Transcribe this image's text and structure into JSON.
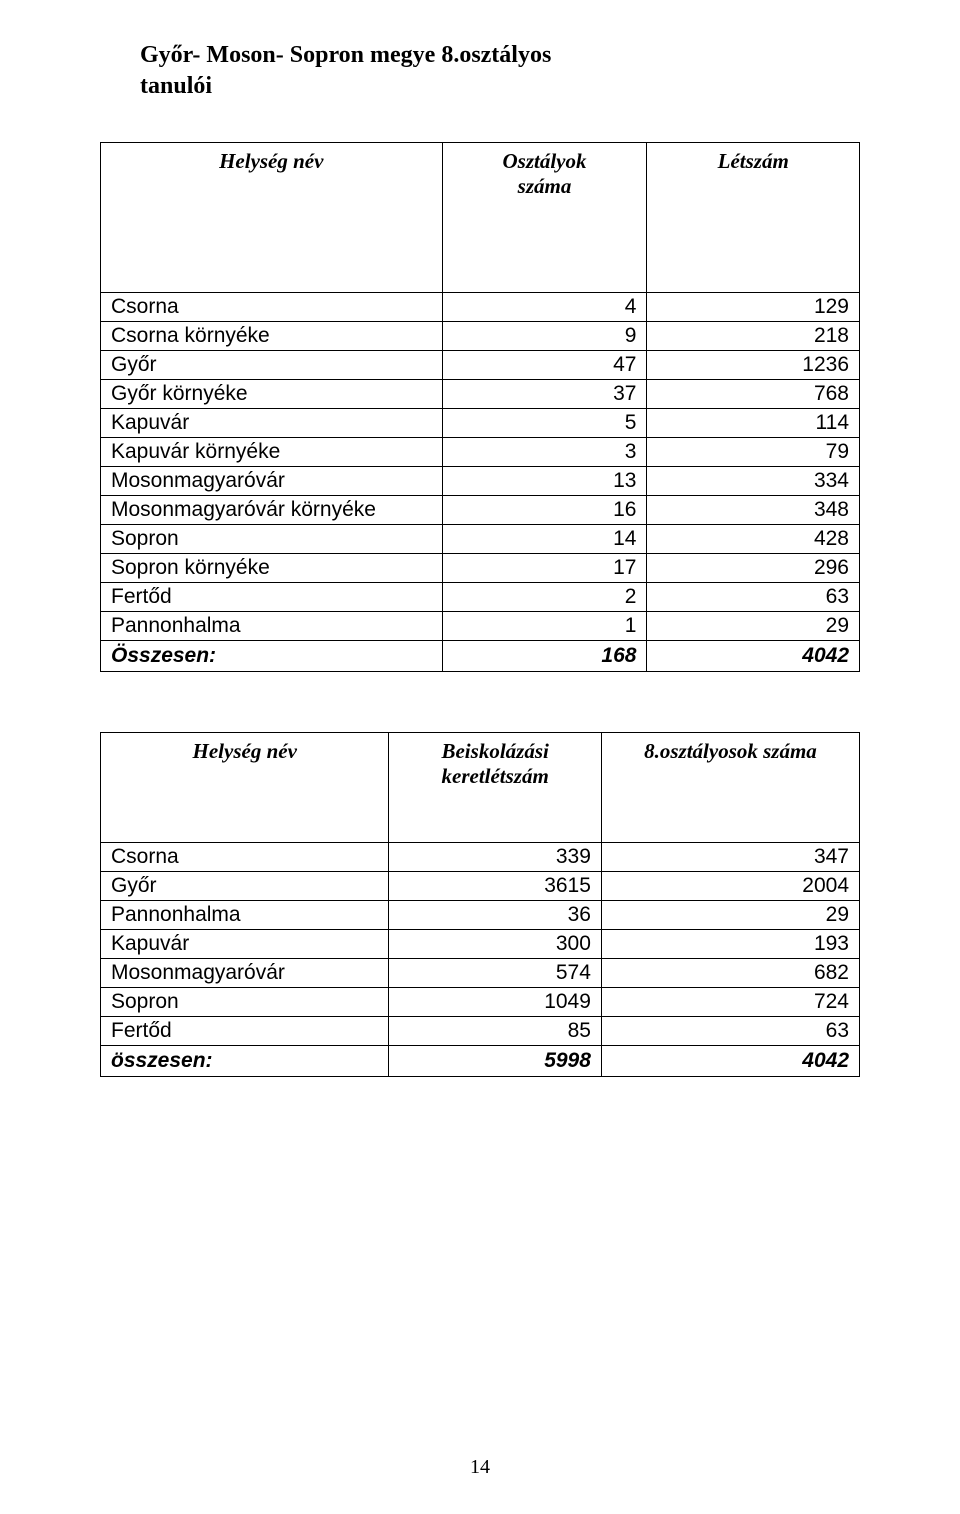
{
  "title_line1": "Győr- Moson- Sopron megye 8.osztályos",
  "title_line2": "tanulói",
  "page_number": "14",
  "table1": {
    "headers": {
      "h1": "Helység név",
      "h2a": "Osztályok",
      "h2b": "száma",
      "h3": "Létszám"
    },
    "rows": [
      {
        "name": "Csorna",
        "a": "4",
        "b": "129"
      },
      {
        "name": "Csorna környéke",
        "a": "9",
        "b": "218"
      },
      {
        "name": "Győr",
        "a": "47",
        "b": "1236"
      },
      {
        "name": "Győr környéke",
        "a": "37",
        "b": "768"
      },
      {
        "name": "Kapuvár",
        "a": "5",
        "b": "114"
      },
      {
        "name": "Kapuvár környéke",
        "a": "3",
        "b": "79"
      },
      {
        "name": "Mosonmagyaróvár",
        "a": "13",
        "b": "334"
      },
      {
        "name": "Mosonmagyaróvár környéke",
        "a": "16",
        "b": "348"
      },
      {
        "name": "Sopron",
        "a": "14",
        "b": "428"
      },
      {
        "name": "Sopron környéke",
        "a": "17",
        "b": "296"
      },
      {
        "name": "Fertőd",
        "a": "2",
        "b": "63"
      },
      {
        "name": "Pannonhalma",
        "a": "1",
        "b": "29"
      }
    ],
    "total": {
      "label": "Összesen:",
      "a": "168",
      "b": "4042"
    }
  },
  "table2": {
    "headers": {
      "h1": "Helység név",
      "h2a": "Beiskolázási",
      "h2b": "keretlétszám",
      "h3": "8.osztályosok száma"
    },
    "rows": [
      {
        "name": "Csorna",
        "a": "339",
        "b": "347"
      },
      {
        "name": "Győr",
        "a": "3615",
        "b": "2004"
      },
      {
        "name": "Pannonhalma",
        "a": "36",
        "b": "29"
      },
      {
        "name": "Kapuvár",
        "a": "300",
        "b": "193"
      },
      {
        "name": "Mosonmagyaróvár",
        "a": "574",
        "b": "682"
      },
      {
        "name": "Sopron",
        "a": "1049",
        "b": "724"
      },
      {
        "name": "Fertőd",
        "a": "85",
        "b": "63"
      }
    ],
    "total": {
      "label": "összesen:",
      "a": "5998",
      "b": "4042"
    }
  }
}
